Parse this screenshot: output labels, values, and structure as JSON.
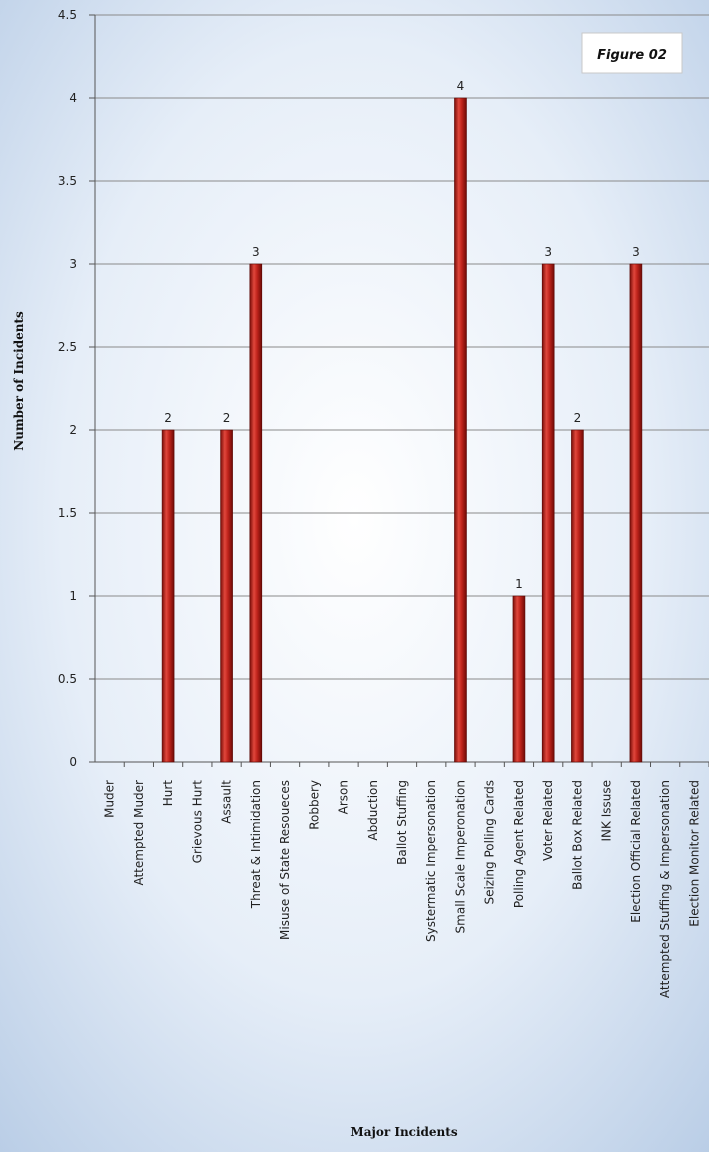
{
  "figure_label": "Figure 02",
  "chart_data": {
    "type": "bar",
    "title": "",
    "xlabel": "Major Incidents",
    "ylabel": "Number of Incidents",
    "ylim": [
      0,
      4.5
    ],
    "y_ticks": [
      "0",
      "0.5",
      "1",
      "1.5",
      "2",
      "2.5",
      "3",
      "3.5",
      "4",
      "4.5"
    ],
    "grid": true,
    "bar_color": "#c0241c",
    "categories": [
      "Muder",
      "Attempted Muder",
      "Hurt",
      "Grievous Hurt",
      "Assault",
      "Threat & Intimidation",
      "Misuse of State Resoueces",
      "Robbery",
      "Arson",
      "Abduction",
      "Ballot Stuffing",
      "Systermatic Impersonation",
      "Small Scale Imperonation",
      "Seizing Polling Cards",
      "Polling Agent Related",
      "Voter Related",
      "Ballot Box Related",
      "INK Issuse",
      "Election Official Related",
      "Attempted Stuffing & Impersonation",
      "Election Monitor Related"
    ],
    "values": [
      0,
      0,
      2,
      0,
      2,
      3,
      0,
      0,
      0,
      0,
      0,
      0,
      4,
      0,
      1,
      3,
      2,
      0,
      3,
      0,
      0
    ],
    "data_labels": [
      "",
      "",
      "2",
      "",
      "2",
      "3",
      "",
      "",
      "",
      "",
      "",
      "",
      "4",
      "",
      "1",
      "3",
      "2",
      "",
      "3",
      "",
      ""
    ]
  }
}
